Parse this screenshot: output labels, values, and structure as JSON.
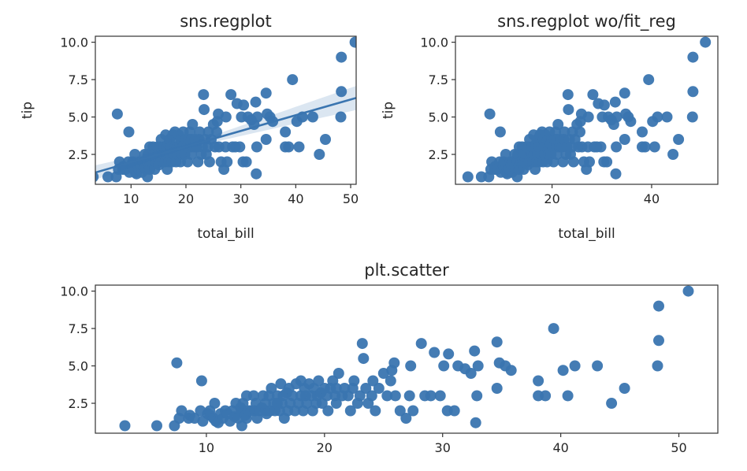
{
  "chart_data": [
    {
      "id": "p1",
      "type": "scatter",
      "title": "sns.regplot",
      "xlabel": "total_bill",
      "ylabel": "tip",
      "xlim": [
        3.5,
        51
      ],
      "ylim": [
        0.5,
        10.4
      ],
      "xticks": [
        10,
        20,
        30,
        40,
        50
      ],
      "yticks": [
        2.5,
        5.0,
        7.5,
        10.0
      ],
      "ytick_labels": [
        "2.5",
        "5.0",
        "7.5",
        "10.0"
      ],
      "regression": {
        "slope": 0.105,
        "intercept": 0.92
      },
      "color": "#3a75b0",
      "points_ref": "tips"
    },
    {
      "id": "p2",
      "type": "scatter",
      "title": "sns.regplot wo/fit_reg",
      "xlabel": "total_bill",
      "ylabel": "tip",
      "xlim": [
        0.6,
        53.3
      ],
      "ylim": [
        0.5,
        10.4
      ],
      "xticks": [
        20,
        40
      ],
      "yticks": [
        2.5,
        5.0,
        7.5,
        10.0
      ],
      "ytick_labels": [
        "2.5",
        "5.0",
        "7.5",
        "10.0"
      ],
      "color": "#3a75b0",
      "points_ref": "tips"
    },
    {
      "id": "p3",
      "type": "scatter",
      "title": "plt.scatter",
      "xlabel": "",
      "ylabel": "",
      "xlim": [
        0.6,
        53.3
      ],
      "ylim": [
        0.5,
        10.4
      ],
      "xticks": [
        10,
        20,
        30,
        40,
        50
      ],
      "yticks": [
        2.5,
        5.0,
        7.5,
        10.0
      ],
      "ytick_labels": [
        "2.5",
        "5.0",
        "7.5",
        "10.0"
      ],
      "color": "#3a75b0",
      "points_ref": "tips"
    }
  ],
  "tips": [
    [
      3.1,
      1.0
    ],
    [
      5.8,
      1.0
    ],
    [
      7.3,
      1.0
    ],
    [
      7.5,
      5.2
    ],
    [
      7.7,
      1.5
    ],
    [
      7.9,
      2.0
    ],
    [
      8.5,
      1.5
    ],
    [
      8.6,
      1.7
    ],
    [
      9.0,
      1.5
    ],
    [
      9.5,
      2.0
    ],
    [
      9.6,
      4.0
    ],
    [
      9.7,
      1.3
    ],
    [
      10.1,
      1.8
    ],
    [
      10.3,
      1.7
    ],
    [
      10.3,
      2.0
    ],
    [
      10.6,
      1.5
    ],
    [
      10.7,
      2.5
    ],
    [
      10.8,
      1.3
    ],
    [
      11.0,
      1.2
    ],
    [
      11.2,
      1.8
    ],
    [
      11.4,
      1.5
    ],
    [
      11.6,
      2.0
    ],
    [
      11.8,
      1.8
    ],
    [
      12.0,
      1.3
    ],
    [
      12.2,
      2.0
    ],
    [
      12.4,
      1.6
    ],
    [
      12.5,
      2.5
    ],
    [
      12.7,
      1.5
    ],
    [
      12.9,
      2.2
    ],
    [
      13.0,
      1.0
    ],
    [
      13.0,
      2.0
    ],
    [
      13.1,
      2.5
    ],
    [
      13.3,
      1.7
    ],
    [
      13.4,
      3.0
    ],
    [
      13.4,
      1.5
    ],
    [
      13.6,
      2.0
    ],
    [
      13.8,
      2.0
    ],
    [
      14.0,
      3.0
    ],
    [
      14.1,
      2.0
    ],
    [
      14.2,
      2.5
    ],
    [
      14.3,
      1.5
    ],
    [
      14.5,
      2.0
    ],
    [
      14.7,
      2.2
    ],
    [
      14.8,
      3.0
    ],
    [
      15.0,
      2.0
    ],
    [
      15.0,
      2.5
    ],
    [
      15.1,
      1.8
    ],
    [
      15.3,
      3.0
    ],
    [
      15.4,
      2.0
    ],
    [
      15.5,
      3.5
    ],
    [
      15.7,
      2.5
    ],
    [
      15.8,
      2.0
    ],
    [
      16.0,
      2.5
    ],
    [
      16.0,
      3.0
    ],
    [
      16.2,
      2.0
    ],
    [
      16.3,
      3.8
    ],
    [
      16.4,
      2.5
    ],
    [
      16.5,
      3.0
    ],
    [
      16.6,
      1.5
    ],
    [
      16.8,
      3.2
    ],
    [
      16.9,
      2.0
    ],
    [
      17.0,
      3.5
    ],
    [
      17.1,
      2.5
    ],
    [
      17.3,
      3.0
    ],
    [
      17.5,
      2.0
    ],
    [
      17.6,
      3.8
    ],
    [
      17.8,
      2.5
    ],
    [
      18.0,
      3.0
    ],
    [
      18.0,
      4.0
    ],
    [
      18.2,
      2.0
    ],
    [
      18.3,
      3.5
    ],
    [
      18.4,
      3.0
    ],
    [
      18.5,
      2.5
    ],
    [
      18.7,
      3.8
    ],
    [
      18.9,
      3.0
    ],
    [
      19.0,
      2.0
    ],
    [
      19.1,
      3.5
    ],
    [
      19.3,
      2.5
    ],
    [
      19.4,
      3.0
    ],
    [
      19.5,
      4.0
    ],
    [
      19.7,
      3.2
    ],
    [
      19.8,
      2.5
    ],
    [
      20.0,
      3.5
    ],
    [
      20.2,
      3.0
    ],
    [
      20.3,
      2.0
    ],
    [
      20.5,
      3.5
    ],
    [
      20.7,
      4.0
    ],
    [
      20.9,
      3.0
    ],
    [
      21.0,
      3.5
    ],
    [
      21.0,
      2.5
    ],
    [
      21.2,
      4.5
    ],
    [
      21.5,
      3.0
    ],
    [
      21.7,
      3.5
    ],
    [
      22.0,
      3.0
    ],
    [
      22.2,
      2.0
    ],
    [
      22.4,
      3.5
    ],
    [
      22.5,
      4.0
    ],
    [
      22.8,
      2.5
    ],
    [
      23.0,
      3.0
    ],
    [
      23.2,
      6.5
    ],
    [
      23.3,
      5.5
    ],
    [
      23.5,
      3.5
    ],
    [
      23.7,
      2.5
    ],
    [
      24.0,
      3.0
    ],
    [
      24.1,
      4.0
    ],
    [
      24.3,
      2.0
    ],
    [
      24.6,
      3.5
    ],
    [
      25.0,
      4.5
    ],
    [
      25.3,
      3.0
    ],
    [
      25.6,
      4.0
    ],
    [
      25.7,
      4.7
    ],
    [
      25.9,
      5.2
    ],
    [
      26.0,
      3.0
    ],
    [
      26.4,
      2.0
    ],
    [
      26.9,
      1.5
    ],
    [
      27.2,
      3.0
    ],
    [
      27.3,
      5.0
    ],
    [
      27.5,
      2.0
    ],
    [
      28.2,
      6.5
    ],
    [
      28.5,
      3.0
    ],
    [
      29.0,
      3.0
    ],
    [
      29.3,
      5.9
    ],
    [
      29.8,
      3.0
    ],
    [
      30.1,
      5.0
    ],
    [
      30.4,
      2.0
    ],
    [
      30.5,
      5.8
    ],
    [
      31.0,
      2.0
    ],
    [
      31.3,
      5.0
    ],
    [
      31.9,
      4.8
    ],
    [
      32.4,
      4.5
    ],
    [
      32.7,
      6.0
    ],
    [
      32.8,
      1.2
    ],
    [
      32.9,
      3.0
    ],
    [
      33.0,
      5.0
    ],
    [
      34.6,
      3.5
    ],
    [
      34.6,
      6.6
    ],
    [
      34.8,
      5.2
    ],
    [
      35.3,
      5.0
    ],
    [
      35.8,
      4.7
    ],
    [
      38.1,
      4.0
    ],
    [
      38.1,
      3.0
    ],
    [
      38.7,
      3.0
    ],
    [
      39.4,
      7.5
    ],
    [
      40.2,
      4.7
    ],
    [
      40.6,
      3.0
    ],
    [
      41.2,
      5.0
    ],
    [
      43.1,
      5.0
    ],
    [
      44.3,
      2.5
    ],
    [
      45.4,
      3.5
    ],
    [
      48.2,
      5.0
    ],
    [
      48.3,
      6.7
    ],
    [
      48.3,
      9.0
    ],
    [
      50.8,
      10.0
    ]
  ]
}
